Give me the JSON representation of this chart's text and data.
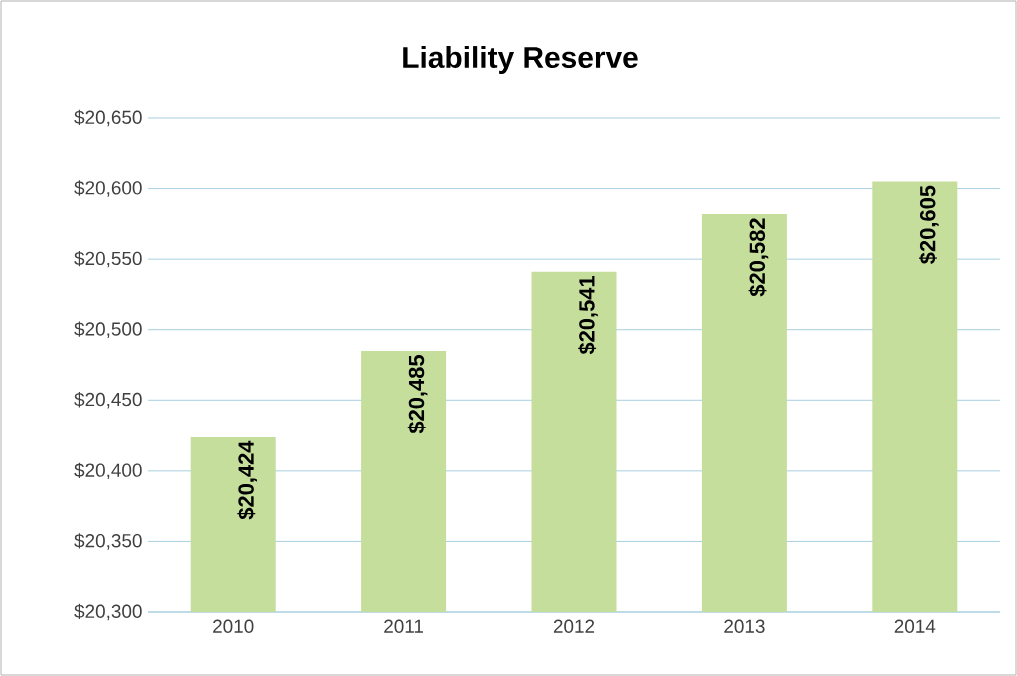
{
  "chart_data": {
    "type": "bar",
    "title": "Liability Reserve",
    "categories": [
      "2010",
      "2011",
      "2012",
      "2013",
      "2014"
    ],
    "values": [
      20424,
      20485,
      20541,
      20582,
      20605
    ],
    "value_labels": [
      "$20,424",
      "$20,485",
      "$20,541",
      "$20,582",
      "$20,605"
    ],
    "color": "#c5de9c",
    "ylim": [
      20300,
      20650
    ],
    "yticks": [
      {
        "value": 20300,
        "label": "$20,300"
      },
      {
        "value": 20350,
        "label": "$20,350"
      },
      {
        "value": 20400,
        "label": "$20,400"
      },
      {
        "value": 20450,
        "label": "$20,450"
      },
      {
        "value": 20500,
        "label": "$20,500"
      },
      {
        "value": 20550,
        "label": "$20,550"
      },
      {
        "value": 20600,
        "label": "$20,600"
      },
      {
        "value": 20650,
        "label": "$20,650"
      }
    ],
    "grid": "y"
  }
}
